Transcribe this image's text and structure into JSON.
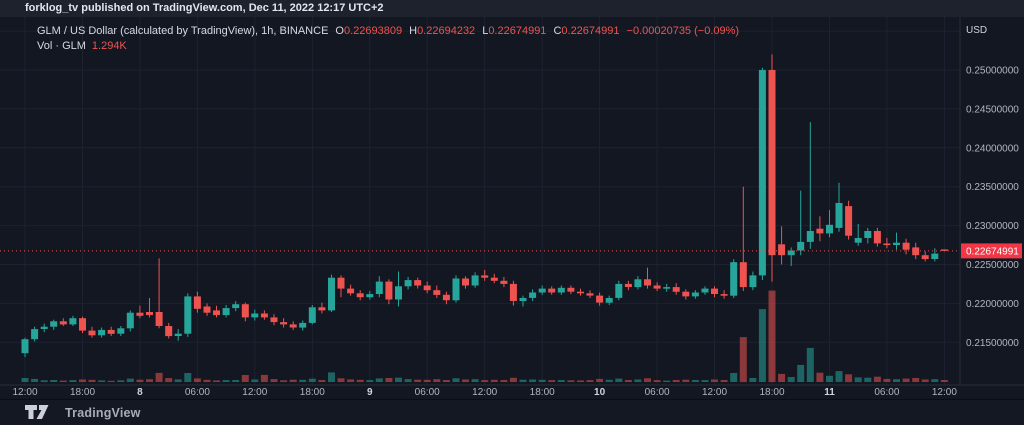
{
  "meta_bar": {
    "text": "forklog_tv published on TradingView.com, Dec 11, 2022 12:17 UTC+2"
  },
  "header": {
    "symbol_line": "GLM / US Dollar (calculated by TradingView), 1h, BINANCE",
    "ohlc": {
      "o_label": "O",
      "o": "0.22693809",
      "h_label": "H",
      "h": "0.22694232",
      "l_label": "L",
      "l": "0.22674991",
      "c_label": "C",
      "c": "0.22674991",
      "change": "−0.00020735 (−0.09%)"
    },
    "vol_label": "Vol · GLM",
    "vol_value": "1.294K"
  },
  "footer": {
    "brand": "TradingView",
    "logo": "tradingview-logo"
  },
  "colors": {
    "background": "#131722",
    "up": "#26a69a",
    "down": "#ef5350",
    "vol_up": "rgba(38,166,154,0.55)",
    "vol_down": "rgba(239,83,80,0.55)",
    "badge": "#f23645",
    "grid": "#1d2231",
    "axis_text": "#b2b5be",
    "axis_text_major": "#d1d4dc",
    "separator": "#2a2e39"
  },
  "chart_data": {
    "type": "candlestick",
    "title": "GLM / US Dollar, 1h, BINANCE",
    "unit_label": "USD",
    "interval": "1h",
    "x_range": [
      "Dec 7 2022 12:00",
      "Dec 11 2022 12:00"
    ],
    "ylim": [
      0.2125,
      0.2545
    ],
    "grid": true,
    "price_gridlines": [
      0.255,
      0.25,
      0.245,
      0.24,
      0.235,
      0.23,
      0.225,
      0.22,
      0.215
    ],
    "price_axis_labels": [
      {
        "price": 0.25,
        "text": "0.25000000"
      },
      {
        "price": 0.245,
        "text": "0.24500000"
      },
      {
        "price": 0.24,
        "text": "0.24000000"
      },
      {
        "price": 0.235,
        "text": "0.23500000"
      },
      {
        "price": 0.23,
        "text": "0.23000000"
      },
      {
        "price": 0.225,
        "text": "0.22500000"
      },
      {
        "price": 0.22,
        "text": "0.22000000"
      },
      {
        "price": 0.215,
        "text": "0.21500000"
      }
    ],
    "time_ticks": [
      {
        "i": 0,
        "text": "12:00",
        "day": false
      },
      {
        "i": 6,
        "text": "18:00",
        "day": false
      },
      {
        "i": 12,
        "text": "8",
        "day": true
      },
      {
        "i": 18,
        "text": "06:00",
        "day": false
      },
      {
        "i": 24,
        "text": "12:00",
        "day": false
      },
      {
        "i": 30,
        "text": "18:00",
        "day": false
      },
      {
        "i": 36,
        "text": "9",
        "day": true
      },
      {
        "i": 42,
        "text": "06:00",
        "day": false
      },
      {
        "i": 48,
        "text": "12:00",
        "day": false
      },
      {
        "i": 54,
        "text": "18:00",
        "day": false
      },
      {
        "i": 60,
        "text": "10",
        "day": true
      },
      {
        "i": 66,
        "text": "06:00",
        "day": false
      },
      {
        "i": 72,
        "text": "12:00",
        "day": false
      },
      {
        "i": 78,
        "text": "18:00",
        "day": false
      },
      {
        "i": 84,
        "text": "11",
        "day": true
      },
      {
        "i": 90,
        "text": "06:00",
        "day": false
      },
      {
        "i": 96,
        "text": "12:00",
        "day": false
      }
    ],
    "last_price": 0.22674991,
    "last_price_label": "0.22674991",
    "last_volume_label": "1.294K",
    "candles_format": [
      "open",
      "high",
      "low",
      "close",
      "volume_k_glm"
    ],
    "candles": [
      [
        0.2136,
        0.2156,
        0.2131,
        0.2154,
        2.6
      ],
      [
        0.2154,
        0.217,
        0.2151,
        0.2167,
        2.0
      ],
      [
        0.2167,
        0.2174,
        0.2163,
        0.217,
        1.1
      ],
      [
        0.217,
        0.2179,
        0.2166,
        0.2177,
        1.3
      ],
      [
        0.2177,
        0.2181,
        0.2171,
        0.2173,
        0.9
      ],
      [
        0.2173,
        0.2184,
        0.2171,
        0.2181,
        1.2
      ],
      [
        0.2181,
        0.2183,
        0.2162,
        0.2165,
        1.6
      ],
      [
        0.2165,
        0.217,
        0.2156,
        0.2159,
        1.4
      ],
      [
        0.2159,
        0.2169,
        0.2156,
        0.2166,
        1.0
      ],
      [
        0.2166,
        0.217,
        0.2158,
        0.2161,
        0.8
      ],
      [
        0.2161,
        0.2171,
        0.2158,
        0.2168,
        1.1
      ],
      [
        0.2168,
        0.2191,
        0.2164,
        0.2188,
        2.2
      ],
      [
        0.2188,
        0.2197,
        0.2181,
        0.2184,
        1.5
      ],
      [
        0.2189,
        0.2207,
        0.2182,
        0.2185,
        1.8
      ],
      [
        0.2189,
        0.2258,
        0.2168,
        0.2171,
        5.9
      ],
      [
        0.2171,
        0.2175,
        0.2155,
        0.2158,
        2.5
      ],
      [
        0.2158,
        0.2167,
        0.2152,
        0.2161,
        1.7
      ],
      [
        0.2161,
        0.2213,
        0.2157,
        0.2209,
        5.8
      ],
      [
        0.2209,
        0.2215,
        0.2188,
        0.2193,
        2.3
      ],
      [
        0.2196,
        0.22,
        0.2184,
        0.2188,
        1.4
      ],
      [
        0.2191,
        0.2197,
        0.2182,
        0.2185,
        1.0
      ],
      [
        0.2185,
        0.2198,
        0.2182,
        0.2194,
        1.2
      ],
      [
        0.2194,
        0.2203,
        0.219,
        0.2199,
        1.3
      ],
      [
        0.2199,
        0.2201,
        0.2177,
        0.2182,
        4.5
      ],
      [
        0.2182,
        0.2192,
        0.2178,
        0.2187,
        1.6
      ],
      [
        0.2187,
        0.2191,
        0.2179,
        0.2182,
        4.6
      ],
      [
        0.2182,
        0.2186,
        0.2172,
        0.2176,
        1.9
      ],
      [
        0.2176,
        0.2181,
        0.2169,
        0.2173,
        1.1
      ],
      [
        0.2173,
        0.2177,
        0.2166,
        0.2169,
        1.5
      ],
      [
        0.2169,
        0.2178,
        0.2165,
        0.2175,
        1.4
      ],
      [
        0.2175,
        0.2198,
        0.2173,
        0.2195,
        2.1
      ],
      [
        0.2195,
        0.2201,
        0.2187,
        0.2191,
        1.3
      ],
      [
        0.2191,
        0.2237,
        0.2189,
        0.2233,
        6.2
      ],
      [
        0.2233,
        0.2236,
        0.2208,
        0.2219,
        2.4
      ],
      [
        0.2219,
        0.2224,
        0.221,
        0.2213,
        1.7
      ],
      [
        0.2213,
        0.2217,
        0.2204,
        0.2208,
        1.4
      ],
      [
        0.2208,
        0.2216,
        0.2205,
        0.2212,
        1.2
      ],
      [
        0.2212,
        0.2235,
        0.2208,
        0.2228,
        2.3
      ],
      [
        0.2228,
        0.2231,
        0.2199,
        0.2205,
        2.6
      ],
      [
        0.2205,
        0.2241,
        0.2196,
        0.2222,
        2.8
      ],
      [
        0.2222,
        0.2234,
        0.2218,
        0.223,
        1.9
      ],
      [
        0.223,
        0.2233,
        0.2219,
        0.2223,
        1.5
      ],
      [
        0.2223,
        0.2228,
        0.2213,
        0.2217,
        1.4
      ],
      [
        0.2217,
        0.2223,
        0.2207,
        0.2211,
        1.8
      ],
      [
        0.2211,
        0.2215,
        0.2199,
        0.2204,
        1.3
      ],
      [
        0.2204,
        0.2236,
        0.2201,
        0.2232,
        2.4
      ],
      [
        0.2232,
        0.2235,
        0.2219,
        0.2223,
        1.6
      ],
      [
        0.2223,
        0.224,
        0.222,
        0.2236,
        1.8
      ],
      [
        0.2236,
        0.2243,
        0.2229,
        0.2233,
        1.2
      ],
      [
        0.2233,
        0.2238,
        0.2226,
        0.2229,
        1.4
      ],
      [
        0.2229,
        0.2234,
        0.2221,
        0.2225,
        1.3
      ],
      [
        0.2225,
        0.2229,
        0.2197,
        0.2203,
        2.7
      ],
      [
        0.2203,
        0.221,
        0.2196,
        0.2207,
        1.5
      ],
      [
        0.2207,
        0.2218,
        0.2203,
        0.2214,
        1.6
      ],
      [
        0.2214,
        0.2223,
        0.2211,
        0.2219,
        1.4
      ],
      [
        0.2219,
        0.2222,
        0.2211,
        0.2214,
        1.2
      ],
      [
        0.2214,
        0.2223,
        0.2211,
        0.222,
        1.3
      ],
      [
        0.222,
        0.2223,
        0.2212,
        0.2215,
        1.1
      ],
      [
        0.2215,
        0.2219,
        0.221,
        0.2213,
        1.0
      ],
      [
        0.2213,
        0.2217,
        0.2207,
        0.221,
        1.2
      ],
      [
        0.221,
        0.2214,
        0.2197,
        0.2201,
        2.0
      ],
      [
        0.2201,
        0.221,
        0.2198,
        0.2207,
        1.4
      ],
      [
        0.2207,
        0.2229,
        0.2204,
        0.2225,
        2.2
      ],
      [
        0.2225,
        0.2229,
        0.2217,
        0.2221,
        1.3
      ],
      [
        0.2221,
        0.2235,
        0.2218,
        0.2231,
        1.6
      ],
      [
        0.2231,
        0.2246,
        0.2219,
        0.2223,
        2.4
      ],
      [
        0.2223,
        0.2227,
        0.2216,
        0.2219,
        1.2
      ],
      [
        0.2219,
        0.2225,
        0.2215,
        0.2221,
        0.9
      ],
      [
        0.2221,
        0.2226,
        0.2211,
        0.2215,
        1.3
      ],
      [
        0.2215,
        0.2218,
        0.2205,
        0.2209,
        1.5
      ],
      [
        0.2209,
        0.2217,
        0.2206,
        0.2214,
        1.3
      ],
      [
        0.2214,
        0.2222,
        0.2211,
        0.2219,
        1.2
      ],
      [
        0.2219,
        0.2222,
        0.2208,
        0.2212,
        1.6
      ],
      [
        0.2212,
        0.2217,
        0.2206,
        0.221,
        1.3
      ],
      [
        0.221,
        0.2257,
        0.2207,
        0.2253,
        5.8
      ],
      [
        0.2253,
        0.235,
        0.2216,
        0.2221,
        29.0
      ],
      [
        0.2221,
        0.2241,
        0.2217,
        0.2236,
        2.6
      ],
      [
        0.2236,
        0.2503,
        0.223,
        0.25,
        47.0
      ],
      [
        0.25,
        0.252,
        0.2228,
        0.2262,
        59.0
      ],
      [
        0.2276,
        0.2299,
        0.225,
        0.2262,
        5.2
      ],
      [
        0.2262,
        0.2272,
        0.2248,
        0.2268,
        3.2
      ],
      [
        0.2268,
        0.2345,
        0.2262,
        0.2279,
        11.0
      ],
      [
        0.2279,
        0.2433,
        0.227,
        0.2293,
        22.0
      ],
      [
        0.2296,
        0.2312,
        0.228,
        0.229,
        6.0
      ],
      [
        0.229,
        0.232,
        0.2285,
        0.2301,
        4.0
      ],
      [
        0.2297,
        0.2355,
        0.2292,
        0.2329,
        7.0
      ],
      [
        0.2325,
        0.2332,
        0.2282,
        0.2287,
        5.0
      ],
      [
        0.2278,
        0.2302,
        0.2274,
        0.2284,
        3.0
      ],
      [
        0.2284,
        0.2297,
        0.2277,
        0.2293,
        2.8
      ],
      [
        0.2293,
        0.2297,
        0.2273,
        0.2277,
        3.4
      ],
      [
        0.2277,
        0.2284,
        0.2271,
        0.2275,
        2.0
      ],
      [
        0.2275,
        0.2291,
        0.2269,
        0.2278,
        1.8
      ],
      [
        0.2278,
        0.2283,
        0.2263,
        0.2269,
        2.2
      ],
      [
        0.2272,
        0.2278,
        0.2257,
        0.2262,
        2.6
      ],
      [
        0.2262,
        0.2267,
        0.2254,
        0.2257,
        1.6
      ],
      [
        0.2257,
        0.2271,
        0.2254,
        0.2264,
        1.8
      ],
      [
        0.22693809,
        0.22694232,
        0.22674991,
        0.22674991,
        1.294
      ]
    ]
  }
}
